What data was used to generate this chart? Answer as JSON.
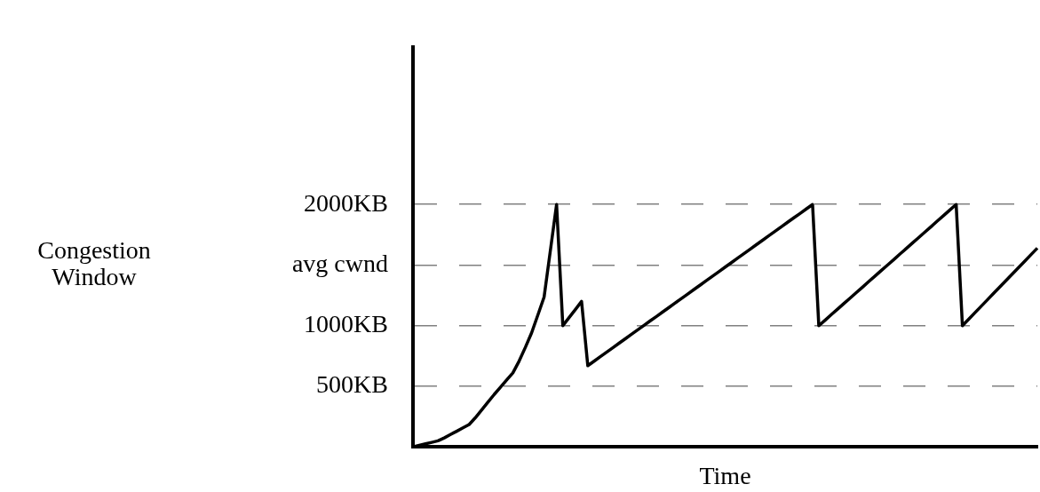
{
  "chart_data": {
    "type": "line",
    "xlabel": "Time",
    "annotations": [
      "Congestion\nWindow"
    ],
    "categories": [
      null,
      null,
      null,
      null,
      null,
      null,
      null,
      null,
      null,
      null,
      null,
      null,
      null,
      null,
      null,
      null,
      null,
      null,
      null,
      null,
      null,
      null,
      null,
      null,
      null,
      null,
      null,
      null,
      null,
      null,
      null,
      null,
      null,
      null,
      null,
      null,
      null,
      null,
      null,
      null,
      null,
      null,
      null,
      null,
      null,
      null,
      null,
      null,
      null,
      null,
      null,
      null,
      null,
      null,
      null,
      null,
      null,
      null,
      null,
      null,
      null,
      null,
      null,
      null,
      null,
      null,
      null,
      null,
      null,
      null,
      null,
      null,
      null,
      null,
      null,
      null,
      null,
      null,
      null,
      null,
      null,
      null,
      null,
      null,
      null,
      null,
      null,
      null,
      null,
      null,
      null,
      null,
      null,
      null,
      null,
      null,
      null,
      null,
      null,
      null,
      null
    ],
    "series": [
      {
        "color": "#000000",
        "values": [
          0,
          12,
          25,
          37,
          50,
          74,
          102,
          129,
          157,
          185,
          241,
          305,
          369,
          432,
          492,
          552,
          611,
          708,
          821,
          941,
          1088,
          1236,
          1618,
          2000,
          1000,
          1067,
          1133,
          1200,
          670,
          707,
          744,
          781,
          818,
          855,
          892,
          929,
          966,
          1003,
          1040,
          1076,
          1113,
          1150,
          1187,
          1224,
          1261,
          1298,
          1335,
          1372,
          1409,
          1446,
          1483,
          1520,
          1557,
          1594,
          1631,
          1668,
          1705,
          1742,
          1779,
          1816,
          1853,
          1890,
          1926,
          1963,
          2000,
          1000,
          1045,
          1091,
          1136,
          1182,
          1227,
          1273,
          1318,
          1364,
          1409,
          1455,
          1500,
          1545,
          1591,
          1636,
          1682,
          1727,
          1773,
          1818,
          1864,
          1909,
          1955,
          2000,
          1000,
          1053,
          1107,
          1160,
          1213,
          1267,
          1320,
          1373,
          1427,
          1480,
          1533,
          1587,
          1640
        ]
      }
    ],
    "ylim": [
      0,
      3300
    ],
    "yticks": [
      {
        "value": 500,
        "label": "500KB"
      },
      {
        "value": 1000,
        "label": "1000KB"
      },
      {
        "value": 1500,
        "label": "avg cwnd"
      },
      {
        "value": 2000,
        "label": "2000KB"
      }
    ],
    "grid": "y",
    "legend": false,
    "marker": "none",
    "line_style": "solid"
  }
}
